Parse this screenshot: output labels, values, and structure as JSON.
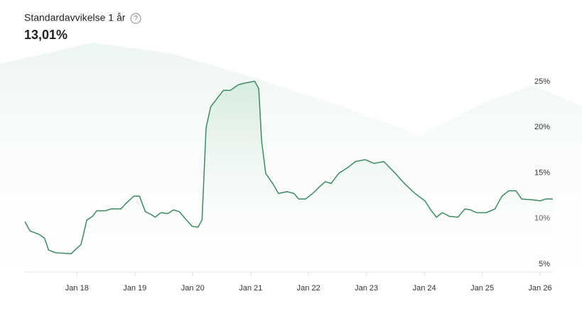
{
  "chart_data": {
    "type": "line",
    "title": "Standardavvikelse 1 år",
    "subtitle": "13,01%",
    "color": "#3f8a64",
    "x": [
      2017.1,
      2017.19,
      2017.35,
      2017.44,
      2017.51,
      2017.63,
      2017.9,
      2018.0,
      2018.07,
      2018.17,
      2018.27,
      2018.34,
      2018.49,
      2018.59,
      2018.76,
      2018.86,
      2018.98,
      2019.08,
      2019.18,
      2019.28,
      2019.35,
      2019.45,
      2019.57,
      2019.67,
      2019.77,
      2019.89,
      2019.99,
      2020.09,
      2020.16,
      2020.23,
      2020.31,
      2020.43,
      2020.53,
      2020.65,
      2020.78,
      2020.9,
      2021.07,
      2021.14,
      2021.19,
      2021.26,
      2021.39,
      2021.48,
      2021.63,
      2021.75,
      2021.83,
      2021.95,
      2022.07,
      2022.2,
      2022.29,
      2022.39,
      2022.52,
      2022.69,
      2022.81,
      2022.98,
      2023.13,
      2023.3,
      2023.5,
      2023.67,
      2023.84,
      2024.01,
      2024.11,
      2024.21,
      2024.31,
      2024.43,
      2024.58,
      2024.7,
      2024.8,
      2024.9,
      2025.07,
      2025.22,
      2025.34,
      2025.46,
      2025.58,
      2025.68,
      2025.88,
      2026.0,
      2026.1,
      2026.22
    ],
    "values": [
      10.1,
      9.1,
      8.7,
      8.3,
      7.0,
      6.7,
      6.6,
      7.2,
      7.6,
      10.3,
      10.7,
      11.3,
      11.3,
      11.5,
      11.5,
      12.2,
      12.9,
      12.9,
      11.2,
      10.9,
      10.6,
      11.1,
      11.0,
      11.4,
      11.2,
      10.3,
      9.6,
      9.5,
      10.3,
      20.4,
      22.7,
      23.7,
      24.5,
      24.5,
      25.1,
      25.3,
      25.5,
      24.7,
      18.9,
      15.4,
      14.2,
      13.2,
      13.4,
      13.2,
      12.6,
      12.6,
      13.2,
      14.0,
      14.5,
      14.3,
      15.4,
      16.1,
      16.7,
      16.9,
      16.5,
      16.7,
      15.4,
      14.2,
      13.2,
      12.4,
      11.4,
      10.6,
      11.1,
      10.7,
      10.6,
      11.5,
      11.4,
      11.1,
      11.1,
      11.5,
      12.9,
      13.5,
      13.5,
      12.6,
      12.5,
      12.4,
      12.6,
      12.6
    ],
    "xlim": [
      2017.1,
      2026.22
    ],
    "ylim": [
      4.6,
      26
    ],
    "xticks": [
      {
        "value": 2018,
        "label": "Jan 18"
      },
      {
        "value": 2019,
        "label": "Jan 19"
      },
      {
        "value": 2020,
        "label": "Jan 20"
      },
      {
        "value": 2021,
        "label": "Jan 21"
      },
      {
        "value": 2022,
        "label": "Jan 22"
      },
      {
        "value": 2023,
        "label": "Jan 23"
      },
      {
        "value": 2024,
        "label": "Jan 24"
      },
      {
        "value": 2025,
        "label": "Jan 25"
      },
      {
        "value": 2026,
        "label": "Jan 26"
      }
    ],
    "yticks": [
      {
        "value": 5,
        "label": "5%"
      },
      {
        "value": 10,
        "label": "10%"
      },
      {
        "value": 15,
        "label": "15%"
      },
      {
        "value": 20,
        "label": "20%"
      },
      {
        "value": 25,
        "label": "25%"
      }
    ]
  }
}
